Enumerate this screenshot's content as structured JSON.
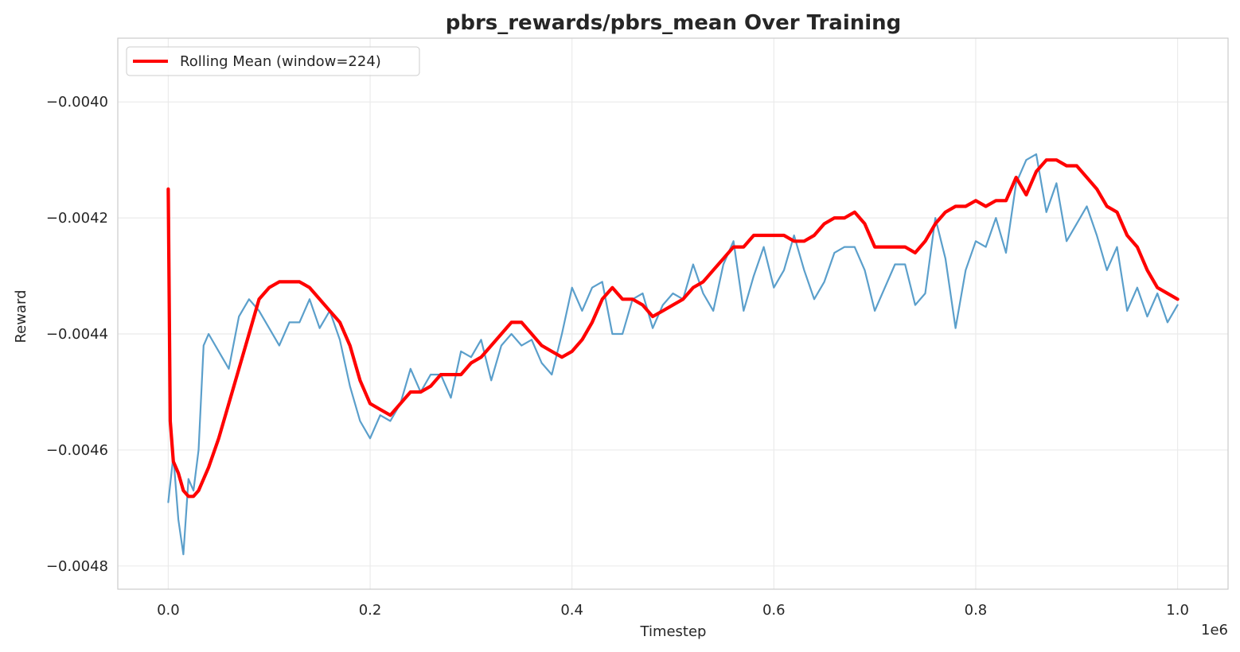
{
  "chart_data": {
    "type": "line",
    "title": "pbrs_rewards/pbrs_mean Over Training",
    "xlabel": "Timestep",
    "ylabel": "Reward",
    "x_offset_text": "1e6",
    "xlim": [
      -0.05,
      1.05
    ],
    "ylim": [
      -0.00484,
      -0.00389
    ],
    "x_ticks": [
      0.0,
      0.2,
      0.4,
      0.6,
      0.8,
      1.0
    ],
    "x_tick_labels": [
      "0.0",
      "0.2",
      "0.4",
      "0.6",
      "0.8",
      "1.0"
    ],
    "y_ticks": [
      -0.004,
      -0.0042,
      -0.0044,
      -0.0046,
      -0.0048
    ],
    "y_tick_labels": [
      "−0.0040",
      "−0.0042",
      "−0.0044",
      "−0.0046",
      "−0.0048"
    ],
    "grid": true,
    "legend_position": "upper-left",
    "colors": {
      "raw": "#5b9fcb",
      "rolling": "#ff0000",
      "grid": "#ebebeb",
      "spine": "#cccccc"
    },
    "series": [
      {
        "kind": "raw",
        "x": [
          0.0,
          0.005,
          0.01,
          0.015,
          0.02,
          0.025,
          0.03,
          0.035,
          0.04,
          0.05,
          0.06,
          0.07,
          0.08,
          0.09,
          0.1,
          0.11,
          0.12,
          0.13,
          0.14,
          0.15,
          0.16,
          0.17,
          0.18,
          0.19,
          0.2,
          0.21,
          0.22,
          0.23,
          0.24,
          0.25,
          0.26,
          0.27,
          0.28,
          0.29,
          0.3,
          0.31,
          0.32,
          0.33,
          0.34,
          0.35,
          0.36,
          0.37,
          0.38,
          0.39,
          0.4,
          0.41,
          0.42,
          0.43,
          0.44,
          0.45,
          0.46,
          0.47,
          0.48,
          0.49,
          0.5,
          0.51,
          0.52,
          0.53,
          0.54,
          0.55,
          0.56,
          0.57,
          0.58,
          0.59,
          0.6,
          0.61,
          0.62,
          0.63,
          0.64,
          0.65,
          0.66,
          0.67,
          0.68,
          0.69,
          0.7,
          0.71,
          0.72,
          0.73,
          0.74,
          0.75,
          0.76,
          0.77,
          0.78,
          0.79,
          0.8,
          0.81,
          0.82,
          0.83,
          0.84,
          0.85,
          0.86,
          0.87,
          0.88,
          0.89,
          0.9,
          0.91,
          0.92,
          0.93,
          0.94,
          0.95,
          0.96,
          0.97,
          0.98,
          0.99,
          1.0
        ],
        "y": [
          -0.00469,
          -0.00461,
          -0.00472,
          -0.00478,
          -0.00465,
          -0.00467,
          -0.0046,
          -0.00442,
          -0.0044,
          -0.00443,
          -0.00446,
          -0.00437,
          -0.00434,
          -0.00436,
          -0.00439,
          -0.00442,
          -0.00438,
          -0.00438,
          -0.00434,
          -0.00439,
          -0.00436,
          -0.00441,
          -0.00449,
          -0.00455,
          -0.00458,
          -0.00454,
          -0.00455,
          -0.00452,
          -0.00446,
          -0.0045,
          -0.00447,
          -0.00447,
          -0.00451,
          -0.00443,
          -0.00444,
          -0.00441,
          -0.00448,
          -0.00442,
          -0.0044,
          -0.00442,
          -0.00441,
          -0.00445,
          -0.00447,
          -0.0044,
          -0.00432,
          -0.00436,
          -0.00432,
          -0.00431,
          -0.0044,
          -0.0044,
          -0.00434,
          -0.00433,
          -0.00439,
          -0.00435,
          -0.00433,
          -0.00434,
          -0.00428,
          -0.00433,
          -0.00436,
          -0.00428,
          -0.00424,
          -0.00436,
          -0.0043,
          -0.00425,
          -0.00432,
          -0.00429,
          -0.00423,
          -0.00429,
          -0.00434,
          -0.00431,
          -0.00426,
          -0.00425,
          -0.00425,
          -0.00429,
          -0.00436,
          -0.00432,
          -0.00428,
          -0.00428,
          -0.00435,
          -0.00433,
          -0.0042,
          -0.00427,
          -0.00439,
          -0.00429,
          -0.00424,
          -0.00425,
          -0.0042,
          -0.00426,
          -0.00414,
          -0.0041,
          -0.00409,
          -0.00419,
          -0.00414,
          -0.00424,
          -0.00421,
          -0.00418,
          -0.00423,
          -0.00429,
          -0.00425,
          -0.00436,
          -0.00432,
          -0.00437,
          -0.00433,
          -0.00438,
          -0.00435
        ]
      },
      {
        "kind": "rolling",
        "name": "Rolling Mean (window=224)",
        "x": [
          0.0,
          0.002,
          0.005,
          0.01,
          0.015,
          0.02,
          0.025,
          0.03,
          0.04,
          0.05,
          0.06,
          0.07,
          0.08,
          0.09,
          0.1,
          0.11,
          0.12,
          0.13,
          0.14,
          0.15,
          0.16,
          0.17,
          0.18,
          0.19,
          0.2,
          0.21,
          0.22,
          0.23,
          0.24,
          0.25,
          0.26,
          0.27,
          0.28,
          0.29,
          0.3,
          0.31,
          0.32,
          0.33,
          0.34,
          0.35,
          0.36,
          0.37,
          0.38,
          0.39,
          0.4,
          0.41,
          0.42,
          0.43,
          0.44,
          0.45,
          0.46,
          0.47,
          0.48,
          0.49,
          0.5,
          0.51,
          0.52,
          0.53,
          0.54,
          0.55,
          0.56,
          0.57,
          0.58,
          0.59,
          0.6,
          0.61,
          0.62,
          0.63,
          0.64,
          0.65,
          0.66,
          0.67,
          0.68,
          0.69,
          0.7,
          0.71,
          0.72,
          0.73,
          0.74,
          0.75,
          0.76,
          0.77,
          0.78,
          0.79,
          0.8,
          0.81,
          0.82,
          0.83,
          0.84,
          0.85,
          0.86,
          0.87,
          0.88,
          0.89,
          0.9,
          0.91,
          0.92,
          0.93,
          0.94,
          0.95,
          0.96,
          0.97,
          0.98,
          0.99,
          1.0
        ],
        "y": [
          -0.00415,
          -0.00455,
          -0.00462,
          -0.00464,
          -0.00467,
          -0.00468,
          -0.00468,
          -0.00467,
          -0.00463,
          -0.00458,
          -0.00452,
          -0.00446,
          -0.0044,
          -0.00434,
          -0.00432,
          -0.00431,
          -0.00431,
          -0.00431,
          -0.00432,
          -0.00434,
          -0.00436,
          -0.00438,
          -0.00442,
          -0.00448,
          -0.00452,
          -0.00453,
          -0.00454,
          -0.00452,
          -0.0045,
          -0.0045,
          -0.00449,
          -0.00447,
          -0.00447,
          -0.00447,
          -0.00445,
          -0.00444,
          -0.00442,
          -0.0044,
          -0.00438,
          -0.00438,
          -0.0044,
          -0.00442,
          -0.00443,
          -0.00444,
          -0.00443,
          -0.00441,
          -0.00438,
          -0.00434,
          -0.00432,
          -0.00434,
          -0.00434,
          -0.00435,
          -0.00437,
          -0.00436,
          -0.00435,
          -0.00434,
          -0.00432,
          -0.00431,
          -0.00429,
          -0.00427,
          -0.00425,
          -0.00425,
          -0.00423,
          -0.00423,
          -0.00423,
          -0.00423,
          -0.00424,
          -0.00424,
          -0.00423,
          -0.00421,
          -0.0042,
          -0.0042,
          -0.00419,
          -0.00421,
          -0.00425,
          -0.00425,
          -0.00425,
          -0.00425,
          -0.00426,
          -0.00424,
          -0.00421,
          -0.00419,
          -0.00418,
          -0.00418,
          -0.00417,
          -0.00418,
          -0.00417,
          -0.00417,
          -0.00413,
          -0.00416,
          -0.00412,
          -0.0041,
          -0.0041,
          -0.00411,
          -0.00411,
          -0.00413,
          -0.00415,
          -0.00418,
          -0.00419,
          -0.00423,
          -0.00425,
          -0.00429,
          -0.00432,
          -0.00433,
          -0.00434
        ]
      }
    ]
  }
}
